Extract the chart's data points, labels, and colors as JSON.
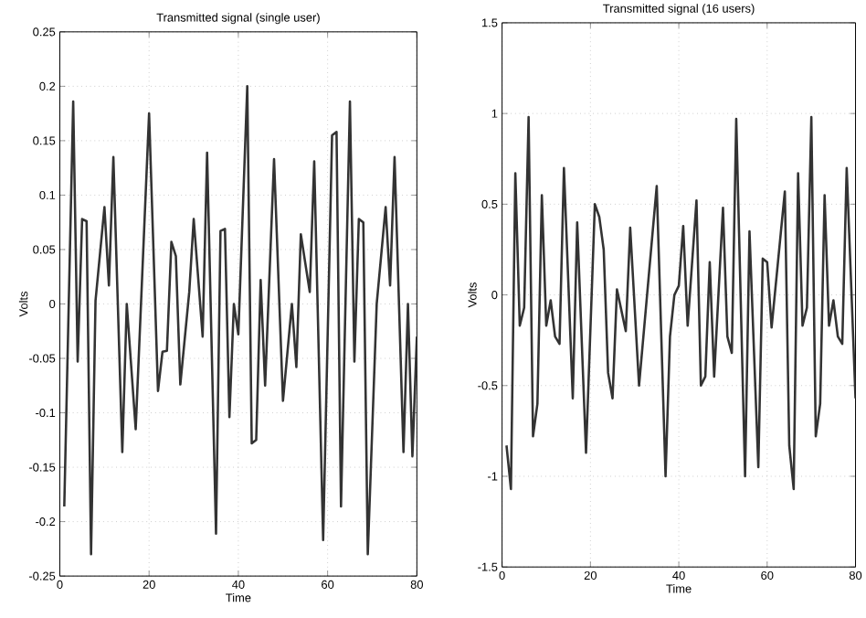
{
  "chart_data": [
    {
      "type": "line",
      "title": "Transmitted signal (single user)",
      "xlabel": "Time",
      "ylabel": "Volts",
      "xlim": [
        0,
        80
      ],
      "ylim": [
        -0.25,
        0.25
      ],
      "xticks": [
        0,
        20,
        40,
        60,
        80
      ],
      "yticks": [
        -0.25,
        -0.2,
        -0.15,
        -0.1,
        -0.05,
        0,
        0.05,
        0.1,
        0.15,
        0.2,
        0.25
      ],
      "grid": true,
      "line_style": "solid",
      "x": [
        1,
        3,
        4,
        5,
        6,
        7,
        8,
        10,
        11,
        12,
        14,
        15,
        17,
        20,
        22,
        23,
        24,
        25,
        26,
        27,
        29,
        30,
        32,
        33,
        35,
        36,
        37,
        38,
        39,
        40,
        42,
        43,
        44,
        45,
        46,
        48,
        50,
        52,
        53,
        54,
        56,
        57,
        59,
        61,
        62,
        63,
        65,
        66,
        67,
        68,
        69,
        71,
        73,
        74,
        75,
        77,
        78,
        79,
        80
      ],
      "series": [
        {
          "color": "#333333",
          "values": [
            -0.186,
            0.186,
            -0.053,
            0.078,
            0.076,
            -0.23,
            0.003,
            0.089,
            0.017,
            0.135,
            -0.136,
            0.0,
            -0.115,
            0.175,
            -0.08,
            -0.044,
            -0.043,
            0.057,
            0.044,
            -0.074,
            0.011,
            0.078,
            -0.03,
            0.139,
            -0.211,
            0.067,
            0.069,
            -0.104,
            0.0,
            -0.028,
            0.2,
            -0.128,
            -0.125,
            0.022,
            -0.075,
            0.133,
            -0.089,
            0.0,
            -0.058,
            0.064,
            0.011,
            0.131,
            -0.217,
            0.155,
            0.158,
            -0.186,
            0.186,
            -0.053,
            0.078,
            0.075,
            -0.23,
            0.0,
            0.089,
            0.017,
            0.135,
            -0.136,
            0.0,
            -0.14,
            -0.03
          ]
        }
      ]
    },
    {
      "type": "line",
      "title": "Transmitted signal (16 users)",
      "xlabel": "Time",
      "ylabel": "Volts",
      "xlim": [
        0,
        80
      ],
      "ylim": [
        -1.5,
        1.5
      ],
      "xticks": [
        0,
        20,
        40,
        60,
        80
      ],
      "yticks": [
        -1.5,
        -1,
        -0.5,
        0,
        0.5,
        1,
        1.5
      ],
      "grid": true,
      "line_style": "solid",
      "x": [
        1,
        2,
        3,
        4,
        5,
        6,
        7,
        8,
        9,
        10,
        11,
        12,
        13,
        14,
        16,
        17,
        19,
        21,
        22,
        23,
        24,
        25,
        26,
        28,
        29,
        31,
        35,
        37,
        38,
        39,
        40,
        41,
        42,
        44,
        45,
        46,
        47,
        48,
        50,
        51,
        52,
        53,
        55,
        56,
        58,
        59,
        60,
        61,
        64,
        65,
        66,
        67,
        68,
        69,
        70,
        71,
        72,
        73,
        74,
        75,
        76,
        77,
        78,
        80
      ],
      "series": [
        {
          "color": "#333333",
          "values": [
            -0.83,
            -1.07,
            0.67,
            -0.17,
            -0.07,
            0.98,
            -0.78,
            -0.6,
            0.55,
            -0.17,
            -0.03,
            -0.23,
            -0.27,
            0.7,
            -0.57,
            0.4,
            -0.87,
            0.5,
            0.43,
            0.25,
            -0.43,
            -0.57,
            0.03,
            -0.2,
            0.37,
            -0.5,
            0.6,
            -1.0,
            -0.23,
            0.0,
            0.05,
            0.38,
            -0.17,
            0.52,
            -0.5,
            -0.45,
            0.18,
            -0.45,
            0.48,
            -0.23,
            -0.32,
            0.97,
            -1.0,
            0.35,
            -0.95,
            0.2,
            0.18,
            -0.18,
            0.57,
            -0.83,
            -1.07,
            0.67,
            -0.17,
            -0.07,
            0.98,
            -0.78,
            -0.6,
            0.55,
            -0.17,
            -0.03,
            -0.23,
            -0.27,
            0.7,
            -0.57
          ]
        }
      ]
    }
  ]
}
